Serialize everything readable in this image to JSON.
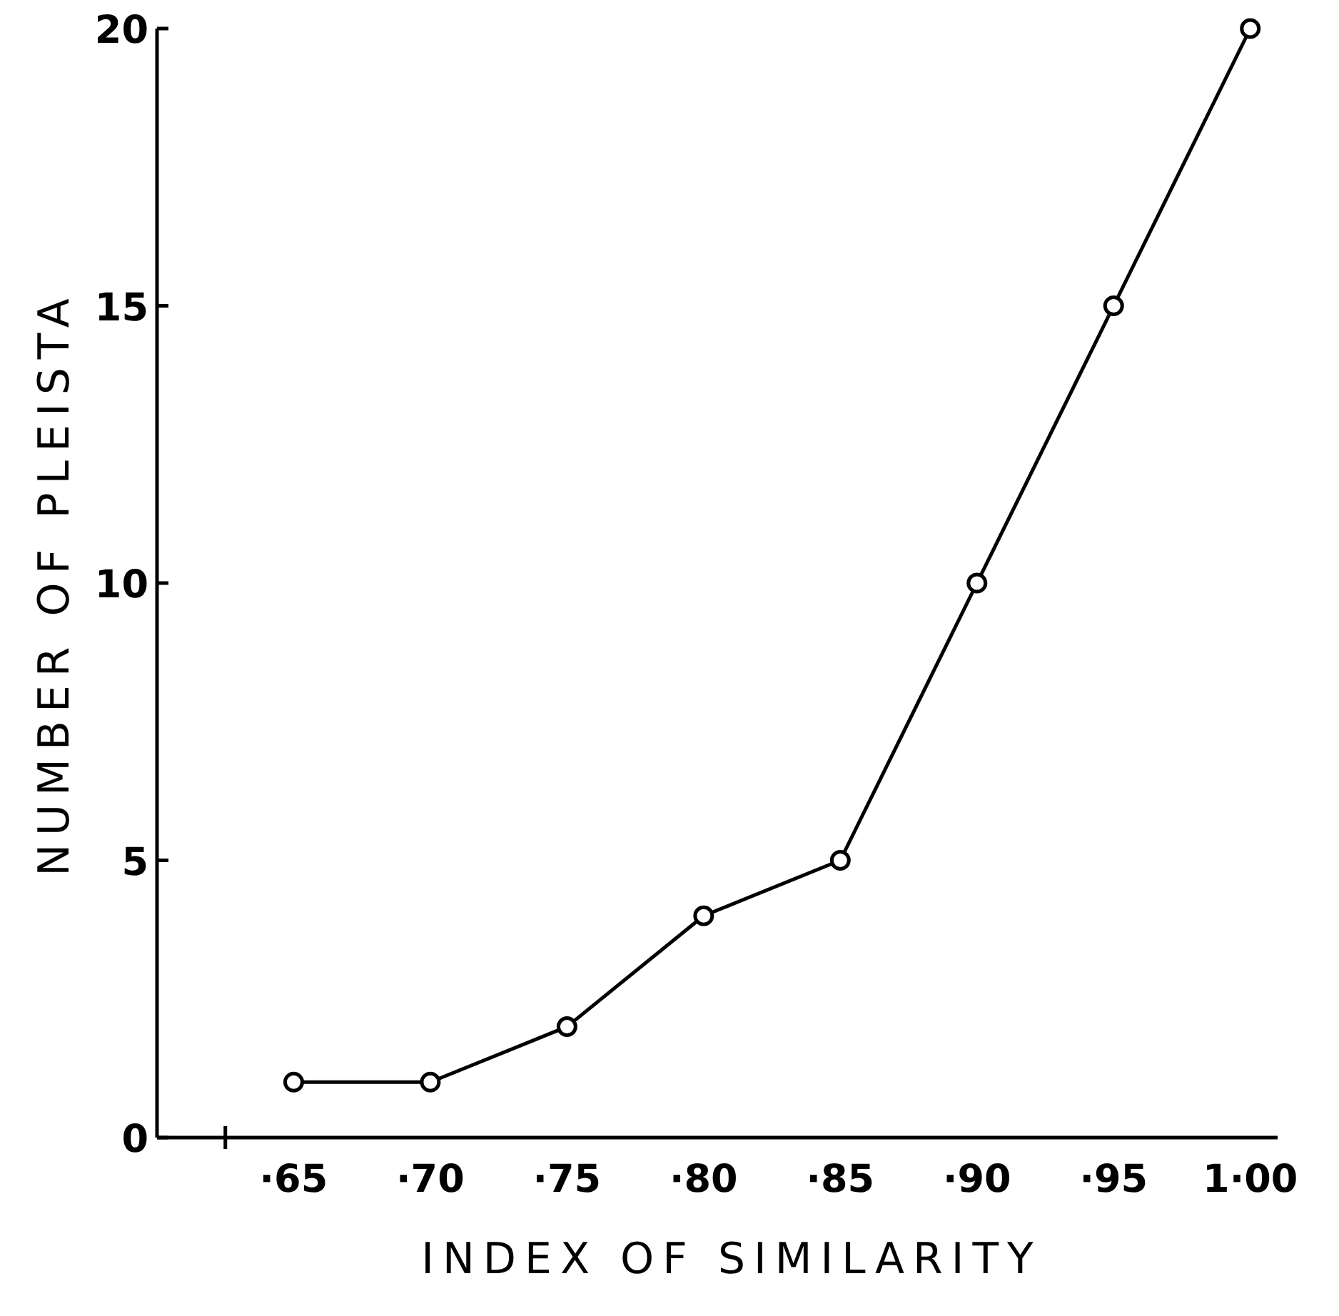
{
  "chart_data": {
    "type": "line",
    "xlabel": "INDEX OF SIMILARITY",
    "ylabel": "NUMBER OF PLEISTA",
    "categories": [
      "·65",
      "·70",
      "·75",
      "·80",
      "·85",
      "·90",
      "·95",
      "1·00"
    ],
    "series": [
      {
        "color": "#000000",
        "values": [
          1,
          1,
          2,
          4,
          5,
          10,
          15,
          20
        ]
      }
    ],
    "ylim": [
      0,
      20
    ],
    "yticks": [
      0,
      5,
      10,
      15,
      20
    ],
    "marker": "circle",
    "line_style": "solid",
    "grid": false
  }
}
